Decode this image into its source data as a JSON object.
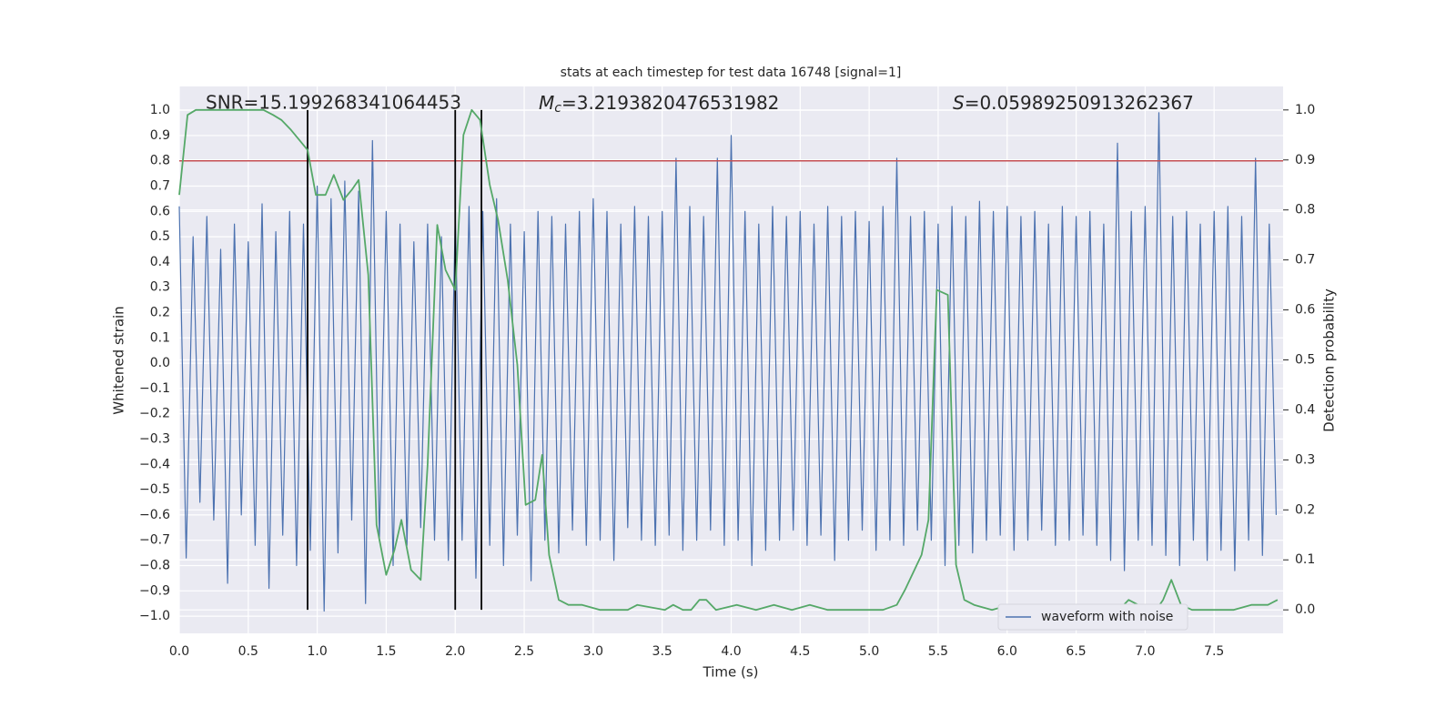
{
  "chart_data": {
    "type": "line",
    "title": "stats at each timestep for test data 16748 [signal=1]",
    "xlabel": "Time (s)",
    "ylabel": "Whitened strain",
    "y2label": "Detection probability",
    "annotations": [
      {
        "text": "SNR=15.199268341064453"
      },
      {
        "symbol": "M",
        "subscript": "c",
        "text": "=3.2193820476531982"
      },
      {
        "symbol": "S",
        "text": "=0.05989250913262367"
      }
    ],
    "xlim": [
      0,
      8.0
    ],
    "ylim": [
      -1.068,
      1.094
    ],
    "y2lim": [
      -0.047,
      1.047
    ],
    "xticks": [
      {
        "value": 0,
        "label": "0.0"
      },
      {
        "value": 0.5,
        "label": "0.5"
      },
      {
        "value": 1,
        "label": "1.0"
      },
      {
        "value": 1.5,
        "label": "1.5"
      },
      {
        "value": 2,
        "label": "2.0"
      },
      {
        "value": 2.5,
        "label": "2.5"
      },
      {
        "value": 3,
        "label": "3.0"
      },
      {
        "value": 3.5,
        "label": "3.5"
      },
      {
        "value": 4,
        "label": "4.0"
      },
      {
        "value": 4.5,
        "label": "4.5"
      },
      {
        "value": 5,
        "label": "5.0"
      },
      {
        "value": 5.5,
        "label": "5.5"
      },
      {
        "value": 6,
        "label": "6.0"
      },
      {
        "value": 6.5,
        "label": "6.5"
      },
      {
        "value": 7,
        "label": "7.0"
      },
      {
        "value": 7.5,
        "label": "7.5"
      }
    ],
    "yticks": [
      {
        "value": -1,
        "label": "−1.0"
      },
      {
        "value": -0.9,
        "label": "−0.9"
      },
      {
        "value": -0.8,
        "label": "−0.8"
      },
      {
        "value": -0.7,
        "label": "−0.7"
      },
      {
        "value": -0.6,
        "label": "−0.6"
      },
      {
        "value": -0.5,
        "label": "−0.5"
      },
      {
        "value": -0.4,
        "label": "−0.4"
      },
      {
        "value": -0.3,
        "label": "−0.3"
      },
      {
        "value": -0.2,
        "label": "−0.2"
      },
      {
        "value": -0.1,
        "label": "−0.1"
      },
      {
        "value": 0,
        "label": "0.0"
      },
      {
        "value": 0.1,
        "label": "0.1"
      },
      {
        "value": 0.2,
        "label": "0.2"
      },
      {
        "value": 0.3,
        "label": "0.3"
      },
      {
        "value": 0.4,
        "label": "0.4"
      },
      {
        "value": 0.5,
        "label": "0.5"
      },
      {
        "value": 0.6,
        "label": "0.6"
      },
      {
        "value": 0.7,
        "label": "0.7"
      },
      {
        "value": 0.8,
        "label": "0.8"
      },
      {
        "value": 0.9,
        "label": "0.9"
      },
      {
        "value": 1,
        "label": "1.0"
      }
    ],
    "y2ticks": [
      {
        "value": 0,
        "label": "0.0"
      },
      {
        "value": 0.1,
        "label": "0.1"
      },
      {
        "value": 0.2,
        "label": "0.2"
      },
      {
        "value": 0.3,
        "label": "0.3"
      },
      {
        "value": 0.4,
        "label": "0.4"
      },
      {
        "value": 0.5,
        "label": "0.5"
      },
      {
        "value": 0.6,
        "label": "0.6"
      },
      {
        "value": 0.7,
        "label": "0.7"
      },
      {
        "value": 0.8,
        "label": "0.8"
      },
      {
        "value": 0.9,
        "label": "0.9"
      },
      {
        "value": 1,
        "label": "1.0"
      }
    ],
    "grid": true,
    "legend": "lower right",
    "hlines": [
      {
        "value": 0.8,
        "color": "#c44e52"
      }
    ],
    "vlines": [
      0.93,
      2.0,
      2.19
    ],
    "vline_color": "#000000",
    "vline_span": [
      0,
      1
    ],
    "series": [
      {
        "name": "waveform with noise",
        "color": "#4c72b0",
        "x": [
          0,
          0.05,
          0.1,
          0.15,
          0.2,
          0.25,
          0.3,
          0.35,
          0.4,
          0.45,
          0.5,
          0.55,
          0.6,
          0.65,
          0.7,
          0.75,
          0.8,
          0.85,
          0.9,
          0.95,
          1,
          1.05,
          1.1,
          1.15,
          1.2,
          1.25,
          1.3,
          1.35,
          1.4,
          1.45,
          1.5,
          1.55,
          1.6,
          1.65,
          1.7,
          1.75,
          1.8,
          1.85,
          1.9,
          1.95,
          2,
          2.05,
          2.1,
          2.15,
          2.2,
          2.25,
          2.3,
          2.35,
          2.4,
          2.45,
          2.5,
          2.55,
          2.6,
          2.65,
          2.7,
          2.75,
          2.8,
          2.85,
          2.9,
          2.95,
          3,
          3.05,
          3.1,
          3.15,
          3.2,
          3.25,
          3.3,
          3.35,
          3.4,
          3.45,
          3.5,
          3.55,
          3.6,
          3.65,
          3.7,
          3.75,
          3.8,
          3.85,
          3.9,
          3.95,
          4,
          4.05,
          4.1,
          4.15,
          4.2,
          4.25,
          4.3,
          4.35,
          4.4,
          4.45,
          4.5,
          4.55,
          4.6,
          4.65,
          4.7,
          4.75,
          4.8,
          4.85,
          4.9,
          4.95,
          5,
          5.05,
          5.1,
          5.15,
          5.2,
          5.25,
          5.3,
          5.35,
          5.4,
          5.45,
          5.5,
          5.55,
          5.6,
          5.65,
          5.7,
          5.75,
          5.8,
          5.85,
          5.9,
          5.95,
          6,
          6.05,
          6.1,
          6.15,
          6.2,
          6.25,
          6.3,
          6.35,
          6.4,
          6.45,
          6.5,
          6.55,
          6.6,
          6.65,
          6.7,
          6.75,
          6.8,
          6.85,
          6.9,
          6.95,
          7,
          7.05,
          7.1,
          7.15,
          7.2,
          7.25,
          7.3,
          7.35,
          7.4,
          7.45,
          7.5,
          7.55,
          7.6,
          7.65,
          7.7,
          7.75,
          7.8,
          7.85,
          7.9,
          7.95
        ],
        "values": [
          0.62,
          -0.77,
          0.5,
          -0.55,
          0.58,
          -0.62,
          0.45,
          -0.87,
          0.55,
          -0.6,
          0.48,
          -0.72,
          0.63,
          -0.89,
          0.52,
          -0.68,
          0.6,
          -0.8,
          0.55,
          -0.74,
          0.7,
          -0.98,
          0.65,
          -0.75,
          0.72,
          -0.62,
          0.68,
          -0.95,
          0.88,
          -0.7,
          0.6,
          -0.8,
          0.55,
          -0.72,
          0.48,
          -0.65,
          0.55,
          -0.7,
          0.5,
          -0.78,
          0.58,
          -0.7,
          0.62,
          -0.85,
          0.6,
          -0.72,
          0.65,
          -0.8,
          0.55,
          -0.68,
          0.52,
          -0.86,
          0.6,
          -0.7,
          0.58,
          -0.75,
          0.55,
          -0.66,
          0.6,
          -0.72,
          0.65,
          -0.7,
          0.6,
          -0.78,
          0.55,
          -0.65,
          0.62,
          -0.7,
          0.58,
          -0.72,
          0.6,
          -0.68,
          0.81,
          -0.74,
          0.62,
          -0.7,
          0.58,
          -0.66,
          0.81,
          -0.72,
          0.9,
          -0.7,
          0.6,
          -0.8,
          0.55,
          -0.74,
          0.62,
          -0.7,
          0.58,
          -0.66,
          0.6,
          -0.72,
          0.55,
          -0.68,
          0.62,
          -0.78,
          0.58,
          -0.7,
          0.6,
          -0.66,
          0.56,
          -0.74,
          0.62,
          -0.7,
          0.81,
          -0.72,
          0.58,
          -0.66,
          0.6,
          -0.7,
          0.55,
          -0.8,
          0.62,
          -0.72,
          0.58,
          -0.75,
          0.64,
          -0.7,
          0.6,
          -0.68,
          0.62,
          -0.74,
          0.58,
          -0.7,
          0.6,
          -0.66,
          0.55,
          -0.72,
          0.62,
          -0.7,
          0.58,
          -0.68,
          0.6,
          -0.72,
          0.55,
          -0.78,
          0.87,
          -0.82,
          0.6,
          -0.7,
          0.62,
          -0.72,
          0.99,
          -0.76,
          0.58,
          -0.8,
          0.6,
          -0.7,
          0.55,
          -0.78,
          0.6,
          -0.74,
          0.62,
          -0.82,
          0.58,
          -0.7,
          0.81,
          -0.76,
          0.55,
          -0.6
        ]
      },
      {
        "color": "#55a868",
        "axis": "y2",
        "x": [
          0,
          0.06,
          0.12,
          0.61,
          0.68,
          0.74,
          0.81,
          0.87,
          0.93,
          0.99,
          1.06,
          1.12,
          1.19,
          1.25,
          1.3,
          1.37,
          1.43,
          1.5,
          1.56,
          1.61,
          1.68,
          1.75,
          1.8,
          1.87,
          1.93,
          2.0,
          2.06,
          2.12,
          2.18,
          2.25,
          2.31,
          2.38,
          2.45,
          2.51,
          2.58,
          2.63,
          2.68,
          2.75,
          2.82,
          2.92,
          3.05,
          3.25,
          3.32,
          3.52,
          3.58,
          3.65,
          3.71,
          3.77,
          3.82,
          3.89,
          4.04,
          4.18,
          4.31,
          4.44,
          4.57,
          4.7,
          4.97,
          5.1,
          5.2,
          5.26,
          5.38,
          5.43,
          5.49,
          5.57,
          5.63,
          5.69,
          5.76,
          5.89,
          6.02,
          6.15,
          6.29,
          6.62,
          6.81,
          6.88,
          6.95,
          7.01,
          7.08,
          7.13,
          7.19,
          7.26,
          7.34,
          7.64,
          7.77,
          7.89,
          7.96
        ],
        "values": [
          0.83,
          0.99,
          1.0,
          1.0,
          0.99,
          0.98,
          0.96,
          0.94,
          0.92,
          0.83,
          0.83,
          0.87,
          0.82,
          0.84,
          0.86,
          0.67,
          0.17,
          0.07,
          0.12,
          0.18,
          0.08,
          0.06,
          0.29,
          0.77,
          0.68,
          0.64,
          0.95,
          1.0,
          0.98,
          0.85,
          0.78,
          0.66,
          0.49,
          0.21,
          0.22,
          0.31,
          0.11,
          0.02,
          0.01,
          0.01,
          0.0,
          0.0,
          0.01,
          0.0,
          0.01,
          0.0,
          0.0,
          0.02,
          0.02,
          0.0,
          0.01,
          0.0,
          0.01,
          0.0,
          0.01,
          0.0,
          0.0,
          0.0,
          0.01,
          0.04,
          0.11,
          0.18,
          0.64,
          0.63,
          0.09,
          0.02,
          0.01,
          0.0,
          0.01,
          0.0,
          0.01,
          0.0,
          0.0,
          0.02,
          0.01,
          0.0,
          0.0,
          0.02,
          0.06,
          0.01,
          0.0,
          0.0,
          0.01,
          0.01,
          0.02
        ]
      }
    ]
  }
}
